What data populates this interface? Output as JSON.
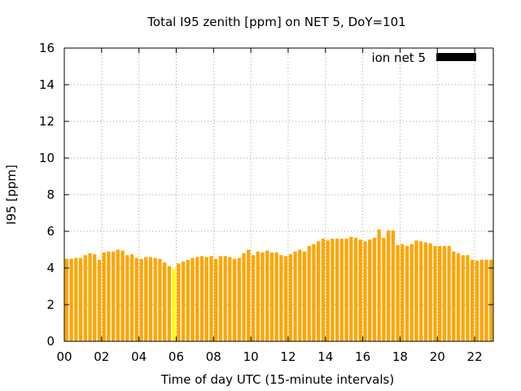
{
  "chart_data": {
    "type": "bar",
    "title": "Total I95 zenith [ppm] on NET 5, DoY=101",
    "xlabel": "Time of day UTC (15-minute intervals)",
    "ylabel": "I95 [ppm]",
    "xlim": [
      0,
      23
    ],
    "ylim": [
      0,
      16
    ],
    "xticks": [
      "00",
      "02",
      "04",
      "06",
      "08",
      "10",
      "12",
      "14",
      "16",
      "18",
      "20",
      "22"
    ],
    "yticks": [
      "0",
      "2",
      "4",
      "6",
      "8",
      "10",
      "12",
      "14",
      "16"
    ],
    "grid": true,
    "legend_position": "top-right",
    "series": [
      {
        "name": "ion net 5",
        "color": "#000000",
        "bar_color": "#ffa500",
        "highlight_color": "#ffff00",
        "highlight_index": 23,
        "values": [
          4.5,
          4.5,
          4.55,
          4.55,
          4.7,
          4.8,
          4.75,
          4.45,
          4.85,
          4.9,
          4.9,
          5.0,
          4.95,
          4.7,
          4.75,
          4.55,
          4.5,
          4.6,
          4.6,
          4.55,
          4.5,
          4.3,
          4.1,
          3.95,
          4.25,
          4.35,
          4.45,
          4.55,
          4.6,
          4.65,
          4.6,
          4.65,
          4.5,
          4.65,
          4.65,
          4.6,
          4.5,
          4.55,
          4.8,
          5.0,
          4.7,
          4.9,
          4.85,
          4.95,
          4.85,
          4.85,
          4.7,
          4.65,
          4.75,
          4.9,
          5.0,
          4.9,
          5.2,
          5.3,
          5.45,
          5.6,
          5.5,
          5.6,
          5.6,
          5.6,
          5.6,
          5.7,
          5.65,
          5.55,
          5.45,
          5.55,
          5.65,
          6.1,
          5.65,
          6.05,
          6.05,
          5.25,
          5.3,
          5.2,
          5.3,
          5.5,
          5.45,
          5.4,
          5.35,
          5.2,
          5.2,
          5.2,
          5.2,
          4.9,
          4.8,
          4.7,
          4.7,
          4.45,
          4.4,
          4.45,
          4.45,
          4.45
        ]
      }
    ]
  }
}
